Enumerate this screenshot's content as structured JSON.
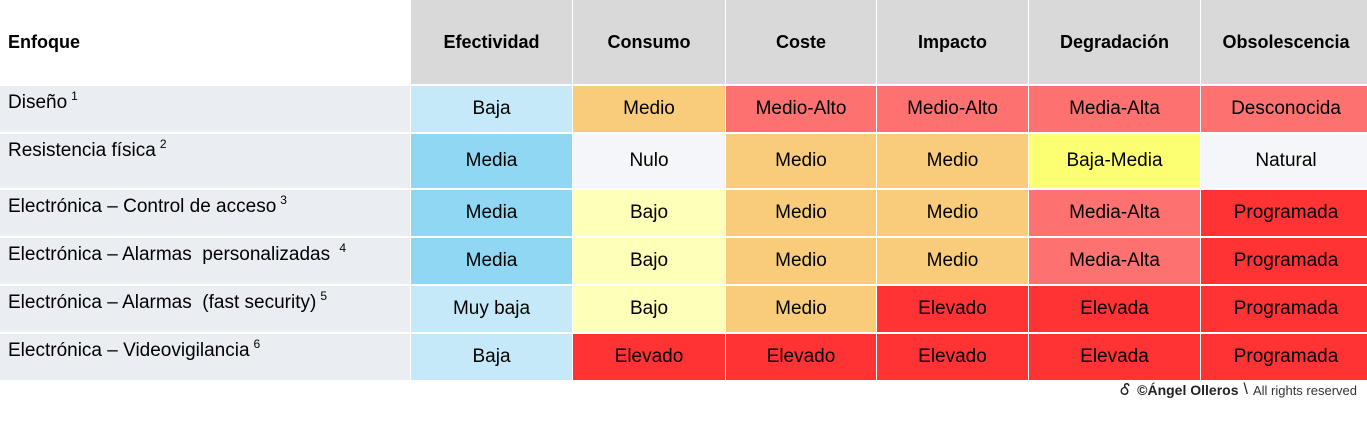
{
  "colors": {
    "header_bg": "#d9d9d9",
    "label_bg": "#eaedf2",
    "very_light_blue": "#c5e9f8",
    "light_blue": "#8fd7f3",
    "orange": "#f8cc7b",
    "salmon": "#fd7270",
    "red": "#ff3333",
    "light_yellow": "#feffb9",
    "yellow": "#fdff72",
    "off_white": "#f4f6fa"
  },
  "table": {
    "headers": [
      "Enfoque",
      "Efectividad",
      "Consumo",
      "Coste",
      "Impacto",
      "Degradación",
      "Obsolescencia"
    ],
    "rows": [
      {
        "label": "Diseño",
        "note": "1",
        "cells": [
          {
            "text": "Baja",
            "color": "#c5e9f8"
          },
          {
            "text": "Medio",
            "color": "#f8cc7b"
          },
          {
            "text": "Medio-Alto",
            "color": "#fd7270"
          },
          {
            "text": "Medio-Alto",
            "color": "#fd7270"
          },
          {
            "text": "Media-Alta",
            "color": "#fd7270"
          },
          {
            "text": "Desconocida",
            "color": "#fd7270"
          }
        ]
      },
      {
        "label": "Resistencia física",
        "note": "2",
        "cells": [
          {
            "text": "Media",
            "color": "#8fd7f3"
          },
          {
            "text": "Nulo",
            "color": "#f4f6fa"
          },
          {
            "text": "Medio",
            "color": "#f8cc7b"
          },
          {
            "text": "Medio",
            "color": "#f8cc7b"
          },
          {
            "text": "Baja-Media",
            "color": "#fdff72"
          },
          {
            "text": "Natural",
            "color": "#f4f6fa"
          }
        ]
      },
      {
        "label": "Electrónica – Control de acceso",
        "note": "3",
        "cells": [
          {
            "text": "Media",
            "color": "#8fd7f3"
          },
          {
            "text": "Bajo",
            "color": "#feffb9"
          },
          {
            "text": "Medio",
            "color": "#f8cc7b"
          },
          {
            "text": "Medio",
            "color": "#f8cc7b"
          },
          {
            "text": "Media-Alta",
            "color": "#fd7270"
          },
          {
            "text": "Programada",
            "color": "#ff3333"
          }
        ]
      },
      {
        "label": "Electrónica – Alarmas  personalizadas ",
        "note": "4",
        "cells": [
          {
            "text": "Media",
            "color": "#8fd7f3"
          },
          {
            "text": "Bajo",
            "color": "#feffb9"
          },
          {
            "text": "Medio",
            "color": "#f8cc7b"
          },
          {
            "text": "Medio",
            "color": "#f8cc7b"
          },
          {
            "text": "Media-Alta",
            "color": "#fd7270"
          },
          {
            "text": "Programada",
            "color": "#ff3333"
          }
        ]
      },
      {
        "label": "Electrónica – Alarmas  (fast security)",
        "note": "5",
        "cells": [
          {
            "text": "Muy baja",
            "color": "#c5e9f8"
          },
          {
            "text": "Bajo",
            "color": "#feffb9"
          },
          {
            "text": "Medio",
            "color": "#f8cc7b"
          },
          {
            "text": "Elevado",
            "color": "#ff3333"
          },
          {
            "text": "Elevada",
            "color": "#ff3333"
          },
          {
            "text": "Programada",
            "color": "#ff3333"
          }
        ]
      },
      {
        "label": "Electrónica – Videovigilancia",
        "note": "6",
        "cells": [
          {
            "text": "Baja",
            "color": "#c5e9f8"
          },
          {
            "text": "Elevado",
            "color": "#ff3333"
          },
          {
            "text": "Elevado",
            "color": "#ff3333"
          },
          {
            "text": "Elevado",
            "color": "#ff3333"
          },
          {
            "text": "Elevada",
            "color": "#ff3333"
          },
          {
            "text": "Programada",
            "color": "#ff3333"
          }
        ]
      }
    ]
  },
  "footer": {
    "logo_glyph": "Ꮄ",
    "author": "©Ángel Olleros",
    "separator": "\\",
    "rights": "All rights reserved"
  }
}
